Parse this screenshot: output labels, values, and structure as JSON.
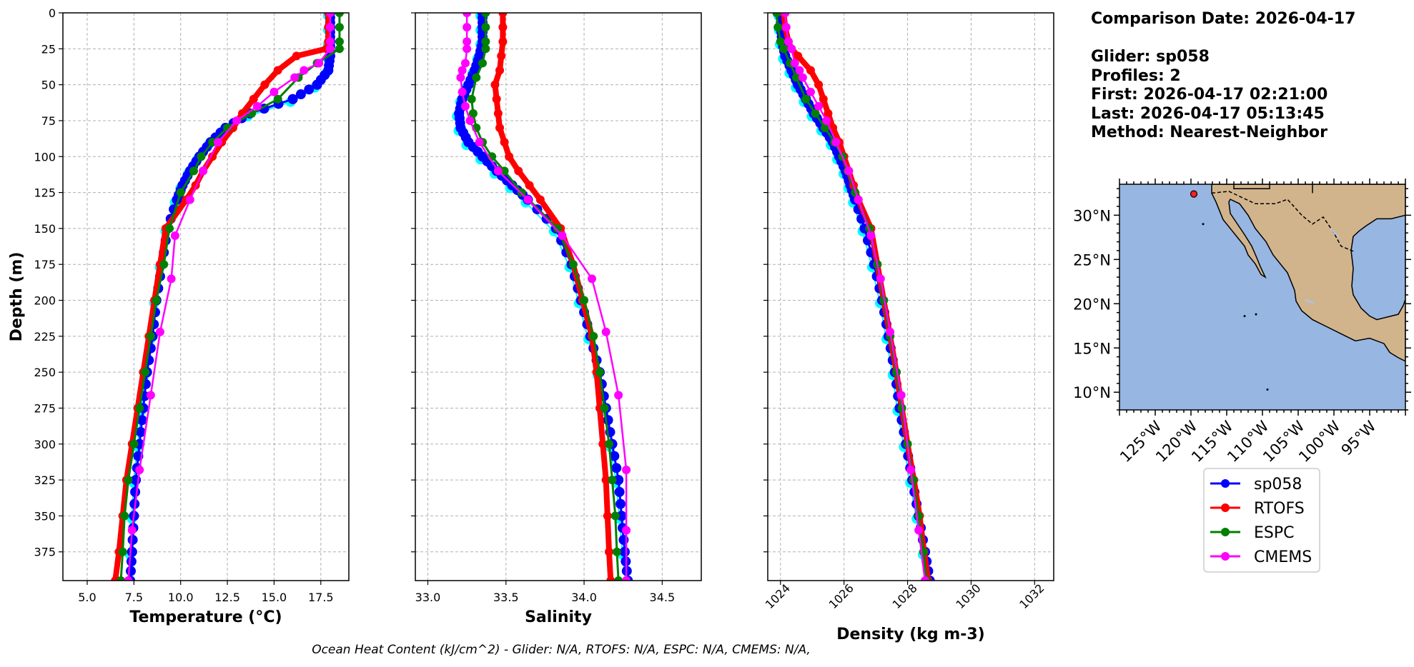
{
  "info": {
    "comparison_date": "Comparison Date: 2026-04-17",
    "glider": "Glider: sp058",
    "profiles": "Profiles: 2",
    "first": "First: 2026-04-17 02:21:00",
    "last": "Last: 2026-04-17 05:13:45",
    "method": "Method: Nearest-Neighbor"
  },
  "footer": "Ocean Heat Content (kJ/cm^2) - Glider: N/A,  RTOFS: N/A,  ESPC: N/A,  CMEMS: N/A,",
  "colors": {
    "sp058": "#0000ff",
    "sp058_alt": "#00ffff",
    "RTOFS": "#ff0000",
    "ESPC": "#008000",
    "CMEMS": "#ff00ff",
    "ocean": "#97b6e1",
    "land": "#d2b48c",
    "grid": "#b0b0b0"
  },
  "legend": [
    "sp058",
    "RTOFS",
    "ESPC",
    "CMEMS"
  ],
  "chart_data": [
    {
      "type": "line",
      "xlabel": "Temperature (°C)",
      "ylabel": "Depth (m)",
      "xlim": [
        3.7,
        19.0
      ],
      "ylim": [
        395,
        0
      ],
      "xticks": [
        5.0,
        7.5,
        10.0,
        12.5,
        15.0,
        17.5
      ],
      "yticks": [
        0,
        25,
        50,
        75,
        100,
        125,
        150,
        175,
        200,
        225,
        250,
        275,
        300,
        325,
        350,
        375
      ],
      "grid": true,
      "series": [
        {
          "name": "sp058",
          "depth": [
            0,
            10,
            20,
            30,
            40,
            50,
            60,
            70,
            80,
            90,
            100,
            110,
            120,
            130,
            150,
            175,
            200,
            225,
            250,
            275,
            300,
            325,
            350,
            375,
            395
          ],
          "values": [
            18.0,
            18.0,
            18.0,
            18.0,
            17.9,
            17.3,
            16.0,
            13.7,
            12.4,
            11.6,
            11.0,
            10.5,
            10.1,
            9.8,
            9.3,
            9.0,
            8.7,
            8.5,
            8.2,
            8.0,
            7.8,
            7.6,
            7.5,
            7.4,
            7.3
          ]
        },
        {
          "name": "RTOFS",
          "depth": [
            0,
            10,
            20,
            25,
            30,
            40,
            50,
            60,
            70,
            80,
            90,
            100,
            110,
            120,
            130,
            150,
            175,
            200,
            225,
            250,
            275,
            300,
            325,
            350,
            375,
            395
          ],
          "values": [
            17.9,
            17.9,
            17.9,
            17.8,
            16.2,
            15.2,
            14.5,
            13.9,
            13.3,
            12.8,
            12.2,
            11.7,
            11.2,
            10.8,
            10.3,
            9.2,
            8.9,
            8.6,
            8.3,
            8.0,
            7.7,
            7.4,
            7.1,
            6.9,
            6.7,
            6.5
          ]
        },
        {
          "name": "ESPC",
          "depth": [
            0,
            10,
            20,
            25,
            35,
            45,
            60,
            70,
            80,
            90,
            100,
            110,
            125,
            150,
            175,
            200,
            225,
            250,
            275,
            300,
            325,
            350,
            375,
            395
          ],
          "values": [
            18.5,
            18.5,
            18.5,
            18.5,
            17.3,
            16.3,
            15.2,
            13.8,
            12.5,
            11.7,
            11.1,
            10.7,
            10.0,
            9.4,
            9.1,
            8.7,
            8.4,
            8.1,
            7.8,
            7.5,
            7.2,
            7.0,
            6.9,
            6.8
          ]
        },
        {
          "name": "CMEMS",
          "depth": [
            0,
            10,
            20,
            25,
            35,
            40,
            45,
            55,
            65,
            75,
            90,
            110,
            130,
            155,
            185,
            222,
            266,
            318,
            360,
            395
          ],
          "values": [
            18.0,
            18.0,
            18.0,
            18.0,
            17.4,
            16.6,
            16.1,
            15.0,
            14.1,
            13.0,
            12.0,
            11.2,
            10.5,
            9.7,
            9.5,
            8.9,
            8.4,
            7.8,
            7.4,
            7.2
          ]
        }
      ]
    },
    {
      "type": "line",
      "xlabel": "Salinity",
      "xlim": [
        32.92,
        34.75
      ],
      "ylim": [
        395,
        0
      ],
      "xticks": [
        33.0,
        33.5,
        34.0,
        34.5
      ],
      "grid": true,
      "series": [
        {
          "name": "sp058",
          "depth": [
            0,
            10,
            20,
            30,
            40,
            50,
            60,
            70,
            80,
            90,
            100,
            110,
            120,
            130,
            150,
            175,
            200,
            225,
            250,
            275,
            300,
            325,
            350,
            375,
            395
          ],
          "values": [
            33.35,
            33.35,
            33.35,
            33.33,
            33.3,
            33.26,
            33.22,
            33.2,
            33.21,
            33.26,
            33.35,
            33.44,
            33.54,
            33.64,
            33.82,
            33.92,
            33.98,
            34.04,
            34.1,
            34.14,
            34.18,
            34.22,
            34.24,
            34.26,
            34.28
          ]
        },
        {
          "name": "RTOFS",
          "depth": [
            0,
            10,
            20,
            30,
            40,
            50,
            60,
            70,
            80,
            90,
            100,
            110,
            120,
            130,
            150,
            175,
            200,
            225,
            250,
            275,
            300,
            325,
            350,
            375,
            395
          ],
          "values": [
            33.48,
            33.48,
            33.48,
            33.47,
            33.46,
            33.43,
            33.44,
            33.45,
            33.46,
            33.49,
            33.52,
            33.58,
            33.65,
            33.72,
            33.85,
            33.93,
            33.99,
            34.05,
            34.08,
            34.1,
            34.12,
            34.14,
            34.15,
            34.16,
            34.17
          ]
        },
        {
          "name": "ESPC",
          "depth": [
            0,
            10,
            20,
            25,
            35,
            45,
            60,
            70,
            80,
            90,
            100,
            110,
            125,
            150,
            175,
            200,
            225,
            250,
            275,
            300,
            325,
            350,
            375,
            395
          ],
          "values": [
            33.37,
            33.37,
            33.37,
            33.37,
            33.35,
            33.31,
            33.28,
            33.29,
            33.31,
            33.35,
            33.41,
            33.49,
            33.6,
            33.83,
            33.93,
            34.0,
            34.06,
            34.1,
            34.13,
            34.16,
            34.18,
            34.2,
            34.21,
            34.22
          ]
        },
        {
          "name": "CMEMS",
          "depth": [
            0,
            10,
            20,
            25,
            35,
            40,
            45,
            55,
            65,
            75,
            90,
            110,
            130,
            155,
            185,
            222,
            266,
            318,
            360,
            395
          ],
          "values": [
            33.25,
            33.25,
            33.25,
            33.25,
            33.24,
            33.22,
            33.21,
            33.22,
            33.24,
            33.27,
            33.33,
            33.45,
            33.64,
            33.86,
            34.05,
            34.14,
            34.22,
            34.27,
            34.27,
            34.27
          ]
        }
      ]
    },
    {
      "type": "line",
      "xlabel": "Density (kg m-3)",
      "xlim": [
        1023.6,
        1032.6
      ],
      "ylim": [
        395,
        0
      ],
      "xticks": [
        1024,
        1026,
        1028,
        1030,
        1032
      ],
      "grid": true,
      "series": [
        {
          "name": "sp058",
          "depth": [
            0,
            10,
            20,
            30,
            40,
            50,
            60,
            70,
            80,
            90,
            100,
            110,
            120,
            130,
            150,
            175,
            200,
            225,
            250,
            275,
            300,
            325,
            350,
            375,
            395
          ],
          "values": [
            1024.0,
            1024.02,
            1024.05,
            1024.15,
            1024.35,
            1024.55,
            1024.8,
            1025.05,
            1025.35,
            1025.65,
            1025.85,
            1026.05,
            1026.2,
            1026.35,
            1026.65,
            1026.95,
            1027.2,
            1027.4,
            1027.6,
            1027.75,
            1027.95,
            1028.15,
            1028.35,
            1028.55,
            1028.7
          ]
        },
        {
          "name": "RTOFS",
          "depth": [
            0,
            10,
            20,
            25,
            30,
            40,
            50,
            60,
            70,
            80,
            90,
            100,
            110,
            120,
            130,
            150,
            175,
            200,
            225,
            250,
            275,
            300,
            325,
            350,
            375,
            395
          ],
          "values": [
            1024.1,
            1024.15,
            1024.25,
            1024.35,
            1024.55,
            1024.95,
            1025.2,
            1025.35,
            1025.5,
            1025.65,
            1025.85,
            1026.0,
            1026.15,
            1026.3,
            1026.45,
            1026.85,
            1027.05,
            1027.25,
            1027.45,
            1027.65,
            1027.82,
            1028.0,
            1028.2,
            1028.38,
            1028.52,
            1028.65
          ]
        },
        {
          "name": "ESPC",
          "depth": [
            0,
            10,
            20,
            25,
            35,
            45,
            60,
            70,
            80,
            90,
            100,
            110,
            125,
            150,
            175,
            200,
            225,
            250,
            275,
            300,
            325,
            350,
            375,
            395
          ],
          "values": [
            1023.88,
            1023.92,
            1024.0,
            1024.1,
            1024.3,
            1024.5,
            1024.8,
            1025.1,
            1025.4,
            1025.7,
            1025.95,
            1026.12,
            1026.35,
            1026.8,
            1027.05,
            1027.25,
            1027.45,
            1027.65,
            1027.82,
            1028.0,
            1028.18,
            1028.35,
            1028.5,
            1028.6
          ]
        },
        {
          "name": "CMEMS",
          "depth": [
            0,
            10,
            20,
            25,
            35,
            40,
            45,
            55,
            65,
            75,
            90,
            110,
            130,
            155,
            185,
            222,
            266,
            318,
            360,
            395
          ],
          "values": [
            1024.15,
            1024.18,
            1024.25,
            1024.35,
            1024.45,
            1024.6,
            1024.7,
            1024.95,
            1025.2,
            1025.45,
            1025.75,
            1026.15,
            1026.45,
            1026.85,
            1027.15,
            1027.45,
            1027.8,
            1028.1,
            1028.35,
            1028.55
          ]
        }
      ]
    }
  ],
  "map": {
    "lat_ticks": [
      "30°N",
      "25°N",
      "20°N",
      "15°N",
      "10°N"
    ],
    "lon_ticks": [
      "125°W",
      "120°W",
      "115°W",
      "110°W",
      "105°W",
      "100°W",
      "95°W"
    ],
    "glider_position": {
      "lon": -119.6,
      "lat": 32.4
    }
  }
}
